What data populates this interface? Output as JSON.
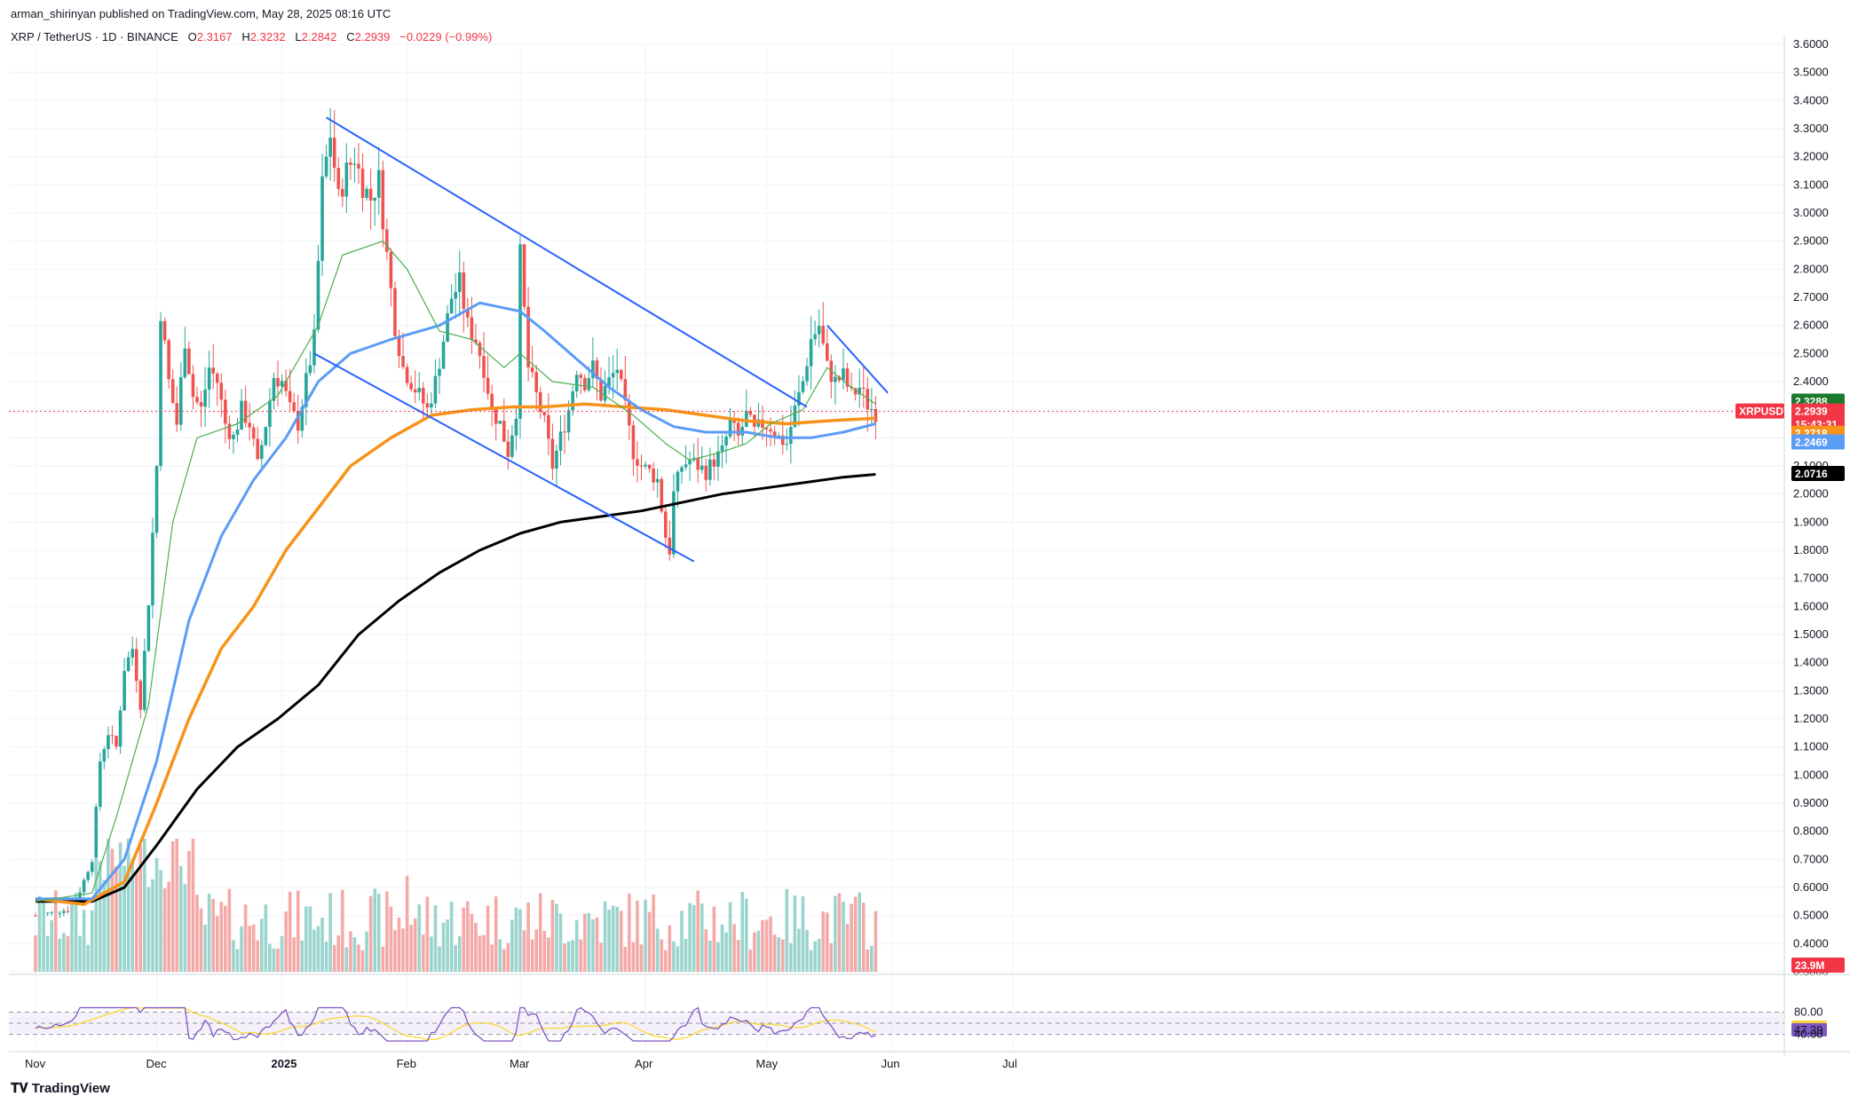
{
  "header": {
    "published": "arman_shirinyan published on TradingView.com, May 28, 2025 08:16 UTC"
  },
  "symbol": {
    "name": "XRP / TetherUS · 1D · BINANCE",
    "open_label": "O",
    "open": "2.3167",
    "high_label": "H",
    "high": "2.3232",
    "low_label": "L",
    "low": "2.2842",
    "close_label": "C",
    "close": "2.2939",
    "change": "−0.0229 (−0.99%)"
  },
  "footer": {
    "logo_text": "TradingView"
  },
  "colors": {
    "up": "#26a69a",
    "down": "#ef5350",
    "vol_up": "#9ad4cd",
    "vol_down": "#f4a9a7",
    "ma_green": "#4caf50",
    "ma_blue": "#5b9cf6",
    "ma_orange": "#f7931a",
    "ma_black": "#000000",
    "trendline": "#2962ff",
    "rsi": "#7e57c2",
    "rsi_ma": "#fdd835"
  },
  "price_tags": [
    {
      "label": "2.3288",
      "value": 2.3288,
      "color": "#1b7a2c"
    },
    {
      "label": "XRPUSDT",
      "value": 2.2939,
      "color": "#f23645",
      "left": true
    },
    {
      "label": "2.2939",
      "value": 2.2939,
      "color": "#f23645"
    },
    {
      "label": "15:43:31",
      "value": 2.2939,
      "color": "#f23645",
      "sub": true
    },
    {
      "label": "2.2718",
      "value": 2.2718,
      "color": "#f7931a"
    },
    {
      "label": "2.2469",
      "value": 2.2469,
      "color": "#5b9cf6"
    },
    {
      "label": "2.0716",
      "value": 2.0716,
      "color": "#000000"
    },
    {
      "label": "23.9M",
      "value": 0,
      "color": "#f23645",
      "volume": true
    }
  ],
  "rsi_tags": [
    {
      "label": "80.00",
      "value": 80
    },
    {
      "label": "52.18",
      "value": 52.18,
      "color": "#fdd835"
    },
    {
      "label": "47.39",
      "value": 47.39,
      "color": "#7e57c2"
    },
    {
      "label": "40.00",
      "value": 40
    }
  ],
  "chart_data": {
    "type": "candlestick",
    "yticks": [
      "3.6000",
      "3.5000",
      "3.4000",
      "3.3000",
      "3.2000",
      "3.1000",
      "3.0000",
      "2.9000",
      "2.8000",
      "2.7000",
      "2.6000",
      "2.5000",
      "2.4000",
      "2.3000",
      "2.2000",
      "2.1000",
      "2.0000",
      "1.9000",
      "1.8000",
      "1.7000",
      "1.6000",
      "1.5000",
      "1.4000",
      "1.3000",
      "1.2000",
      "1.1000",
      "1.0000",
      "0.9000",
      "0.8000",
      "0.7000",
      "0.6000",
      "0.5000",
      "0.4000",
      "0.3000"
    ],
    "xticks": [
      {
        "label": "Nov",
        "day": 0
      },
      {
        "label": "Dec",
        "day": 30
      },
      {
        "label": "2025",
        "day": 61
      },
      {
        "label": "Feb",
        "day": 92
      },
      {
        "label": "Mar",
        "day": 120
      },
      {
        "label": "Apr",
        "day": 151
      },
      {
        "label": "May",
        "day": 181
      },
      {
        "label": "Jun",
        "day": 212
      },
      {
        "label": "Jul",
        "day": 242
      }
    ],
    "ohlc_anchors": [
      [
        0,
        0.5
      ],
      [
        8,
        0.52
      ],
      [
        10,
        0.55
      ],
      [
        14,
        0.7
      ],
      [
        16,
        1.05
      ],
      [
        18,
        1.15
      ],
      [
        20,
        1.1
      ],
      [
        22,
        1.38
      ],
      [
        24,
        1.45
      ],
      [
        26,
        1.25
      ],
      [
        28,
        1.62
      ],
      [
        30,
        2.1
      ],
      [
        31,
        2.65
      ],
      [
        33,
        2.4
      ],
      [
        35,
        2.25
      ],
      [
        37,
        2.55
      ],
      [
        39,
        2.35
      ],
      [
        41,
        2.3
      ],
      [
        43,
        2.45
      ],
      [
        45,
        2.4
      ],
      [
        47,
        2.25
      ],
      [
        49,
        2.2
      ],
      [
        51,
        2.3
      ],
      [
        53,
        2.25
      ],
      [
        55,
        2.1
      ],
      [
        57,
        2.25
      ],
      [
        59,
        2.42
      ],
      [
        61,
        2.4
      ],
      [
        63,
        2.3
      ],
      [
        65,
        2.25
      ],
      [
        67,
        2.4
      ],
      [
        69,
        2.55
      ],
      [
        71,
        3.1
      ],
      [
        73,
        3.28
      ],
      [
        75,
        3.05
      ],
      [
        77,
        3.15
      ],
      [
        79,
        3.2
      ],
      [
        81,
        3.1
      ],
      [
        83,
        3.05
      ],
      [
        85,
        3.12
      ],
      [
        87,
        2.85
      ],
      [
        89,
        2.6
      ],
      [
        91,
        2.45
      ],
      [
        93,
        2.4
      ],
      [
        95,
        2.35
      ],
      [
        97,
        2.3
      ],
      [
        99,
        2.4
      ],
      [
        101,
        2.55
      ],
      [
        103,
        2.7
      ],
      [
        105,
        2.75
      ],
      [
        107,
        2.6
      ],
      [
        109,
        2.55
      ],
      [
        111,
        2.45
      ],
      [
        113,
        2.3
      ],
      [
        115,
        2.25
      ],
      [
        117,
        2.15
      ],
      [
        119,
        2.3
      ],
      [
        120,
        2.85
      ],
      [
        122,
        2.45
      ],
      [
        124,
        2.35
      ],
      [
        126,
        2.25
      ],
      [
        128,
        2.1
      ],
      [
        130,
        2.2
      ],
      [
        132,
        2.3
      ],
      [
        134,
        2.45
      ],
      [
        136,
        2.4
      ],
      [
        138,
        2.45
      ],
      [
        140,
        2.35
      ],
      [
        142,
        2.4
      ],
      [
        144,
        2.45
      ],
      [
        146,
        2.3
      ],
      [
        148,
        2.15
      ],
      [
        150,
        2.1
      ],
      [
        152,
        2.08
      ],
      [
        154,
        2.05
      ],
      [
        156,
        1.85
      ],
      [
        157,
        1.8
      ],
      [
        158,
        2.0
      ],
      [
        160,
        2.1
      ],
      [
        162,
        2.12
      ],
      [
        164,
        2.1
      ],
      [
        166,
        2.08
      ],
      [
        168,
        2.12
      ],
      [
        170,
        2.15
      ],
      [
        172,
        2.25
      ],
      [
        174,
        2.2
      ],
      [
        176,
        2.28
      ],
      [
        178,
        2.22
      ],
      [
        180,
        2.25
      ],
      [
        182,
        2.24
      ],
      [
        184,
        2.2
      ],
      [
        186,
        2.18
      ],
      [
        188,
        2.3
      ],
      [
        190,
        2.4
      ],
      [
        192,
        2.55
      ],
      [
        194,
        2.6
      ],
      [
        196,
        2.45
      ],
      [
        198,
        2.4
      ],
      [
        200,
        2.42
      ],
      [
        202,
        2.35
      ],
      [
        204,
        2.38
      ],
      [
        206,
        2.32
      ],
      [
        208,
        2.29
      ]
    ],
    "volume_scale_note": "",
    "ma_green": [
      [
        0,
        0.55
      ],
      [
        14,
        0.58
      ],
      [
        20,
        0.85
      ],
      [
        28,
        1.25
      ],
      [
        34,
        1.9
      ],
      [
        40,
        2.2
      ],
      [
        50,
        2.25
      ],
      [
        60,
        2.35
      ],
      [
        70,
        2.6
      ],
      [
        76,
        2.85
      ],
      [
        86,
        2.9
      ],
      [
        92,
        2.8
      ],
      [
        100,
        2.58
      ],
      [
        108,
        2.55
      ],
      [
        116,
        2.45
      ],
      [
        120,
        2.5
      ],
      [
        128,
        2.4
      ],
      [
        138,
        2.38
      ],
      [
        148,
        2.28
      ],
      [
        156,
        2.18
      ],
      [
        162,
        2.12
      ],
      [
        170,
        2.15
      ],
      [
        176,
        2.18
      ],
      [
        182,
        2.25
      ],
      [
        190,
        2.3
      ],
      [
        196,
        2.45
      ],
      [
        202,
        2.38
      ],
      [
        208,
        2.32
      ]
    ],
    "ma_blue": [
      [
        0,
        0.56
      ],
      [
        14,
        0.56
      ],
      [
        22,
        0.7
      ],
      [
        30,
        1.05
      ],
      [
        38,
        1.55
      ],
      [
        46,
        1.85
      ],
      [
        54,
        2.05
      ],
      [
        62,
        2.2
      ],
      [
        70,
        2.4
      ],
      [
        78,
        2.5
      ],
      [
        88,
        2.55
      ],
      [
        100,
        2.6
      ],
      [
        110,
        2.68
      ],
      [
        120,
        2.65
      ],
      [
        126,
        2.58
      ],
      [
        134,
        2.48
      ],
      [
        142,
        2.38
      ],
      [
        150,
        2.3
      ],
      [
        158,
        2.24
      ],
      [
        166,
        2.22
      ],
      [
        176,
        2.22
      ],
      [
        184,
        2.2
      ],
      [
        192,
        2.2
      ],
      [
        200,
        2.22
      ],
      [
        208,
        2.25
      ]
    ],
    "ma_orange": [
      [
        0,
        0.56
      ],
      [
        12,
        0.54
      ],
      [
        22,
        0.62
      ],
      [
        30,
        0.9
      ],
      [
        38,
        1.2
      ],
      [
        46,
        1.45
      ],
      [
        54,
        1.6
      ],
      [
        62,
        1.8
      ],
      [
        70,
        1.95
      ],
      [
        78,
        2.1
      ],
      [
        88,
        2.2
      ],
      [
        98,
        2.28
      ],
      [
        108,
        2.3
      ],
      [
        118,
        2.31
      ],
      [
        126,
        2.31
      ],
      [
        136,
        2.32
      ],
      [
        146,
        2.31
      ],
      [
        156,
        2.3
      ],
      [
        166,
        2.28
      ],
      [
        176,
        2.26
      ],
      [
        186,
        2.25
      ],
      [
        196,
        2.26
      ],
      [
        208,
        2.27
      ]
    ],
    "ma_black": [
      [
        0,
        0.55
      ],
      [
        14,
        0.55
      ],
      [
        22,
        0.6
      ],
      [
        30,
        0.75
      ],
      [
        40,
        0.95
      ],
      [
        50,
        1.1
      ],
      [
        60,
        1.2
      ],
      [
        70,
        1.32
      ],
      [
        80,
        1.5
      ],
      [
        90,
        1.62
      ],
      [
        100,
        1.72
      ],
      [
        110,
        1.8
      ],
      [
        120,
        1.86
      ],
      [
        130,
        1.9
      ],
      [
        140,
        1.92
      ],
      [
        150,
        1.94
      ],
      [
        160,
        1.97
      ],
      [
        170,
        2.0
      ],
      [
        180,
        2.02
      ],
      [
        190,
        2.04
      ],
      [
        200,
        2.06
      ],
      [
        208,
        2.07
      ]
    ],
    "trendlines": [
      [
        [
          72,
          3.34
        ],
        [
          191,
          2.31
        ]
      ],
      [
        [
          69,
          2.5
        ],
        [
          163,
          1.76
        ]
      ],
      [
        [
          196,
          2.6
        ],
        [
          211,
          2.36
        ]
      ]
    ]
  }
}
